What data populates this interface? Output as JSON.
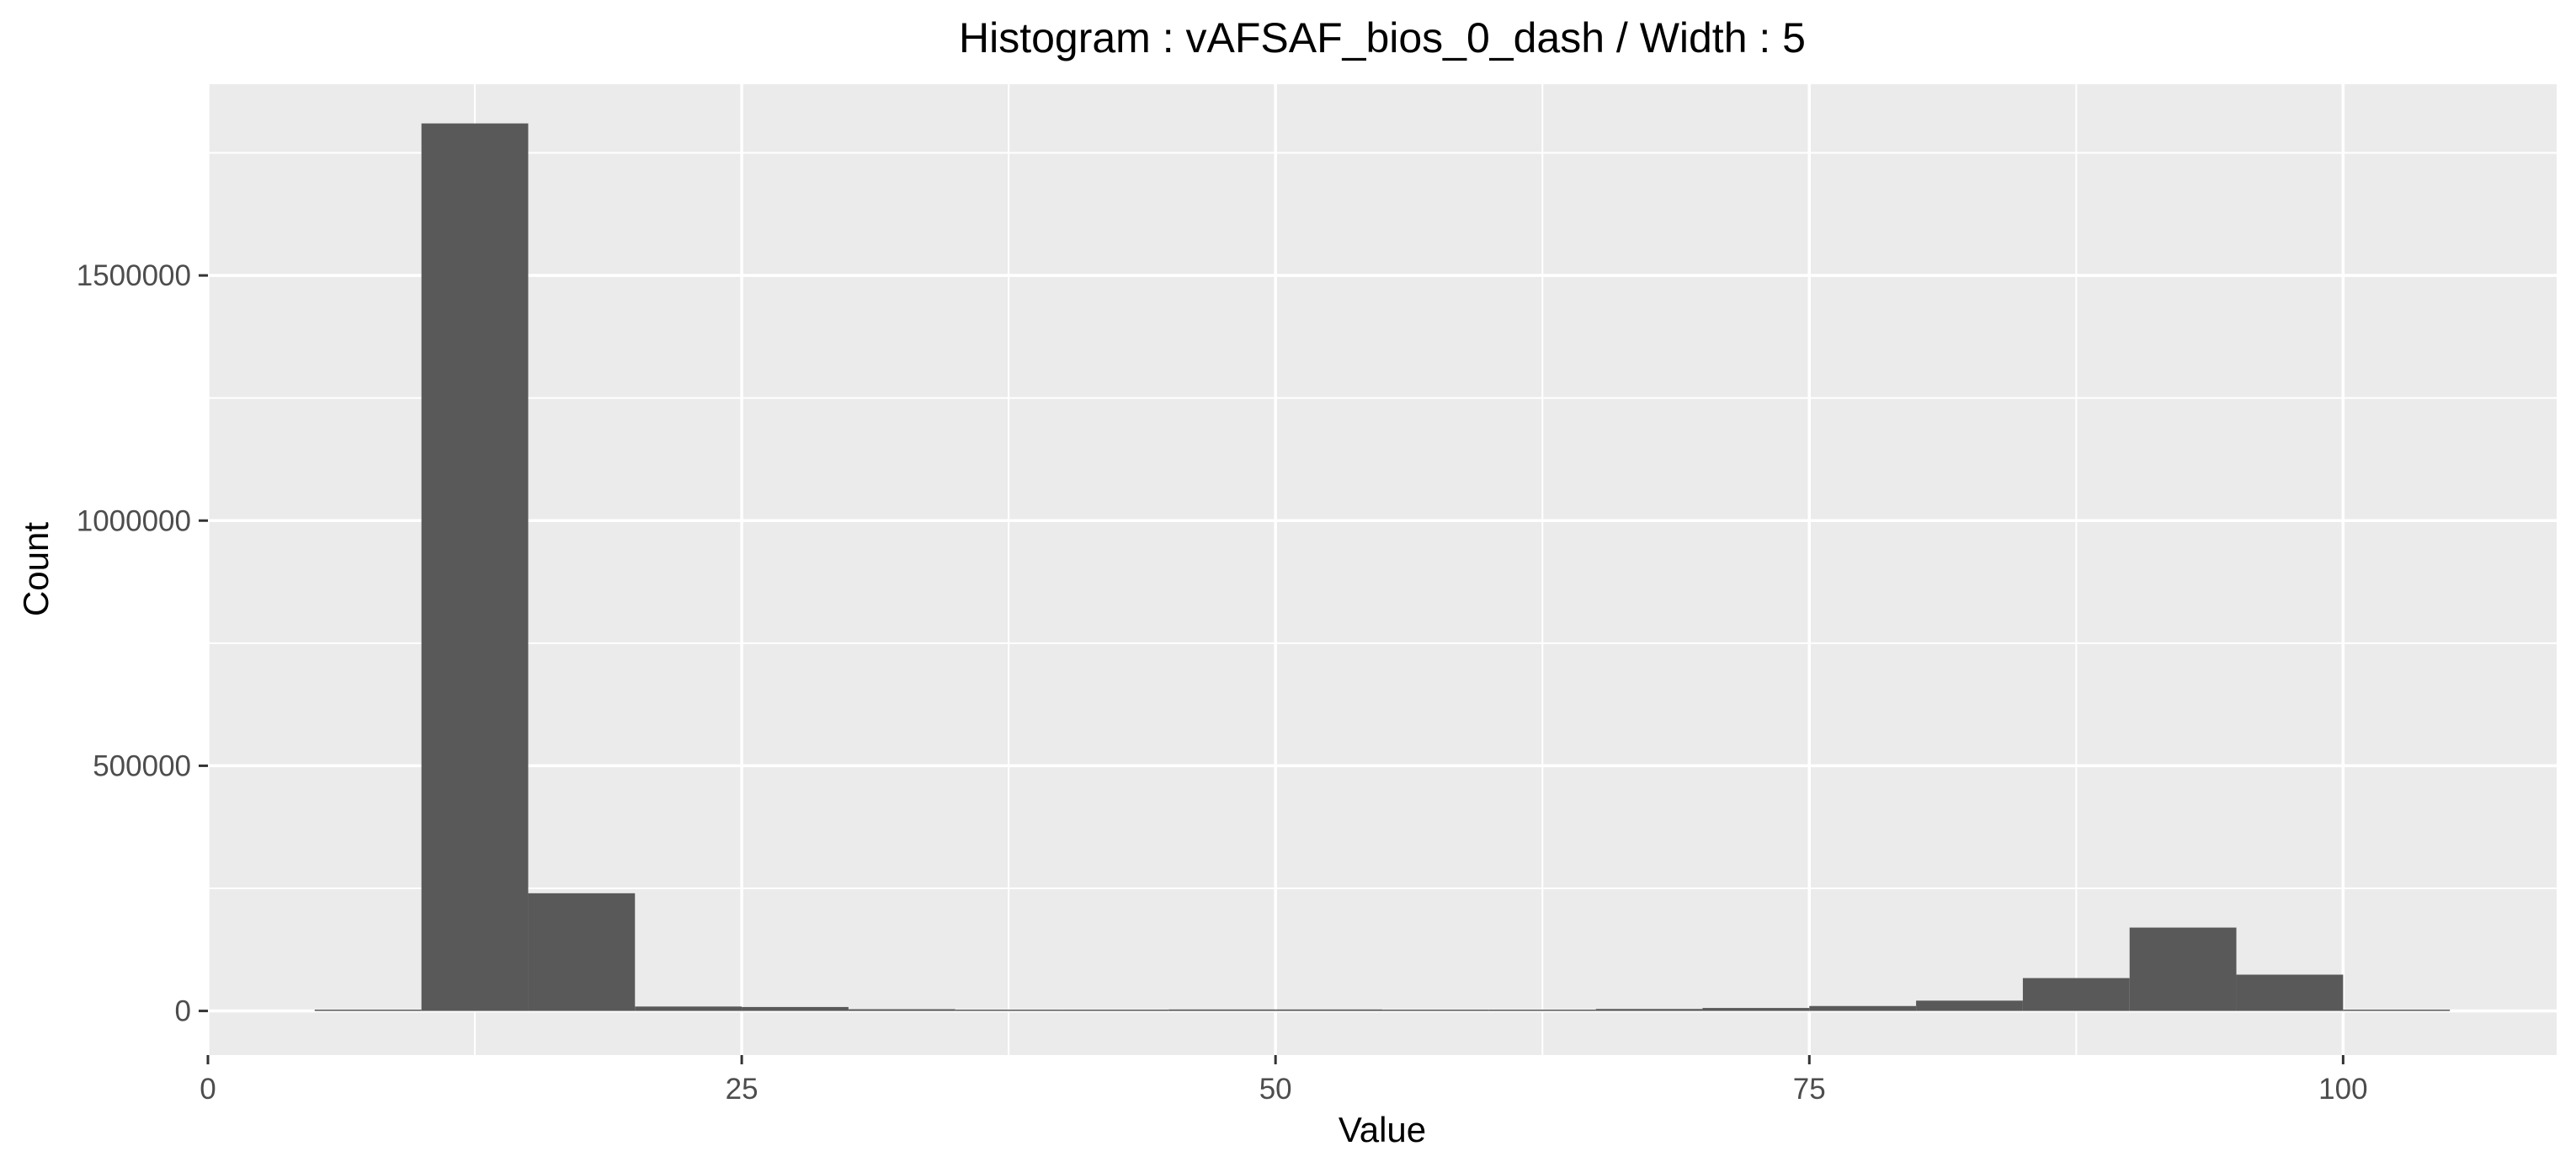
{
  "chart_data": {
    "type": "bar",
    "title": "Histogram : vAFSAF_bios_0_dash / Width : 5",
    "xlabel": "Value",
    "ylabel": "Count",
    "bin_width": 5,
    "xlim": [
      0,
      110
    ],
    "ylim": [
      -90000,
      1890000
    ],
    "x_ticks": [
      0,
      25,
      50,
      75,
      100
    ],
    "x_tick_labels": [
      "0",
      "25",
      "50",
      "75",
      "100"
    ],
    "y_ticks": [
      0,
      500000,
      1000000,
      1500000
    ],
    "y_tick_labels": [
      "0",
      "500000",
      "1000000",
      "1500000"
    ],
    "bins": [
      {
        "x0": 5,
        "x1": 10,
        "count": 500
      },
      {
        "x0": 10,
        "x1": 15,
        "count": 1810000
      },
      {
        "x0": 15,
        "x1": 20,
        "count": 240000
      },
      {
        "x0": 20,
        "x1": 25,
        "count": 9000
      },
      {
        "x0": 25,
        "x1": 30,
        "count": 8000
      },
      {
        "x0": 30,
        "x1": 35,
        "count": 3500
      },
      {
        "x0": 35,
        "x1": 40,
        "count": 2000
      },
      {
        "x0": 40,
        "x1": 45,
        "count": 2000
      },
      {
        "x0": 45,
        "x1": 50,
        "count": 3000
      },
      {
        "x0": 50,
        "x1": 55,
        "count": 3000
      },
      {
        "x0": 55,
        "x1": 60,
        "count": 2500
      },
      {
        "x0": 60,
        "x1": 65,
        "count": 2500
      },
      {
        "x0": 65,
        "x1": 70,
        "count": 4000
      },
      {
        "x0": 70,
        "x1": 75,
        "count": 6000
      },
      {
        "x0": 75,
        "x1": 80,
        "count": 10000
      },
      {
        "x0": 80,
        "x1": 85,
        "count": 21000
      },
      {
        "x0": 85,
        "x1": 90,
        "count": 67000
      },
      {
        "x0": 90,
        "x1": 95,
        "count": 170000
      },
      {
        "x0": 95,
        "x1": 100,
        "count": 74000
      },
      {
        "x0": 100,
        "x1": 105,
        "count": 500
      }
    ],
    "grid": true,
    "legend": "none",
    "colors": {
      "panel_background": "#ebebeb",
      "grid_major": "#ffffff",
      "bar_fill": "#595959",
      "tick_label": "#4d4d4d",
      "axis_tick": "#333333"
    }
  }
}
